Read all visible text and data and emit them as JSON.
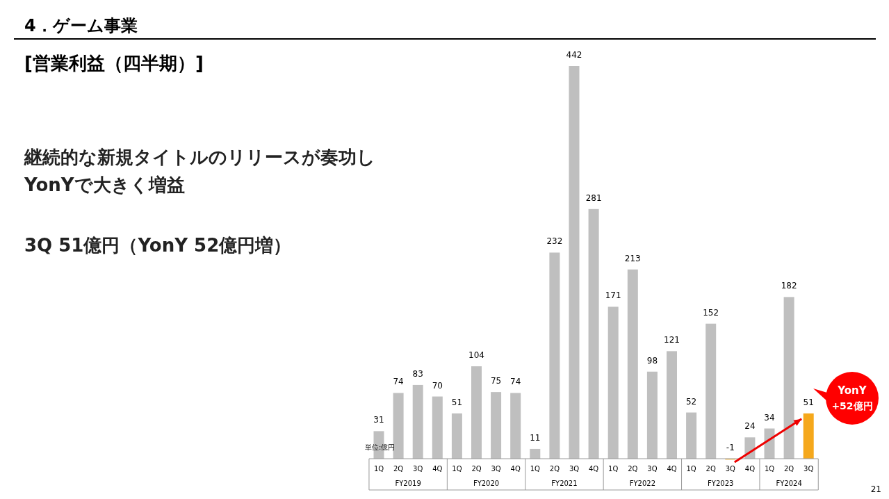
{
  "chart_data": {
    "type": "bar",
    "title": "4．ゲーム事業",
    "subtitle": "[営業利益（四半期）]",
    "categories": [
      "1Q",
      "2Q",
      "3Q",
      "4Q",
      "1Q",
      "2Q",
      "3Q",
      "4Q",
      "1Q",
      "2Q",
      "3Q",
      "4Q",
      "1Q",
      "2Q",
      "3Q",
      "4Q",
      "1Q",
      "2Q",
      "3Q",
      "4Q",
      "1Q",
      "2Q",
      "3Q"
    ],
    "values": [
      31,
      74,
      83,
      70,
      51,
      104,
      75,
      74,
      11,
      232,
      442,
      281,
      171,
      213,
      98,
      121,
      52,
      152,
      -1,
      24,
      34,
      182,
      51
    ],
    "colors": [
      "#bfbfbf",
      "#bfbfbf",
      "#bfbfbf",
      "#bfbfbf",
      "#bfbfbf",
      "#bfbfbf",
      "#bfbfbf",
      "#bfbfbf",
      "#bfbfbf",
      "#bfbfbf",
      "#bfbfbf",
      "#bfbfbf",
      "#bfbfbf",
      "#bfbfbf",
      "#bfbfbf",
      "#bfbfbf",
      "#bfbfbf",
      "#bfbfbf",
      "#f5a81c",
      "#bfbfbf",
      "#bfbfbf",
      "#bfbfbf",
      "#f5a81c"
    ],
    "data_labels": true,
    "annotations": [
      "FY2019",
      "FY2020",
      "FY2021",
      "FY2022",
      "FY2023",
      "FY2024",
      "継続的な新規タイトルのリリースが奏功し",
      "YonYで大きく増益",
      "3Q 51億円（YonY 52億円増）",
      "単位:億円",
      "YonY",
      "+52億円",
      "21"
    ]
  }
}
